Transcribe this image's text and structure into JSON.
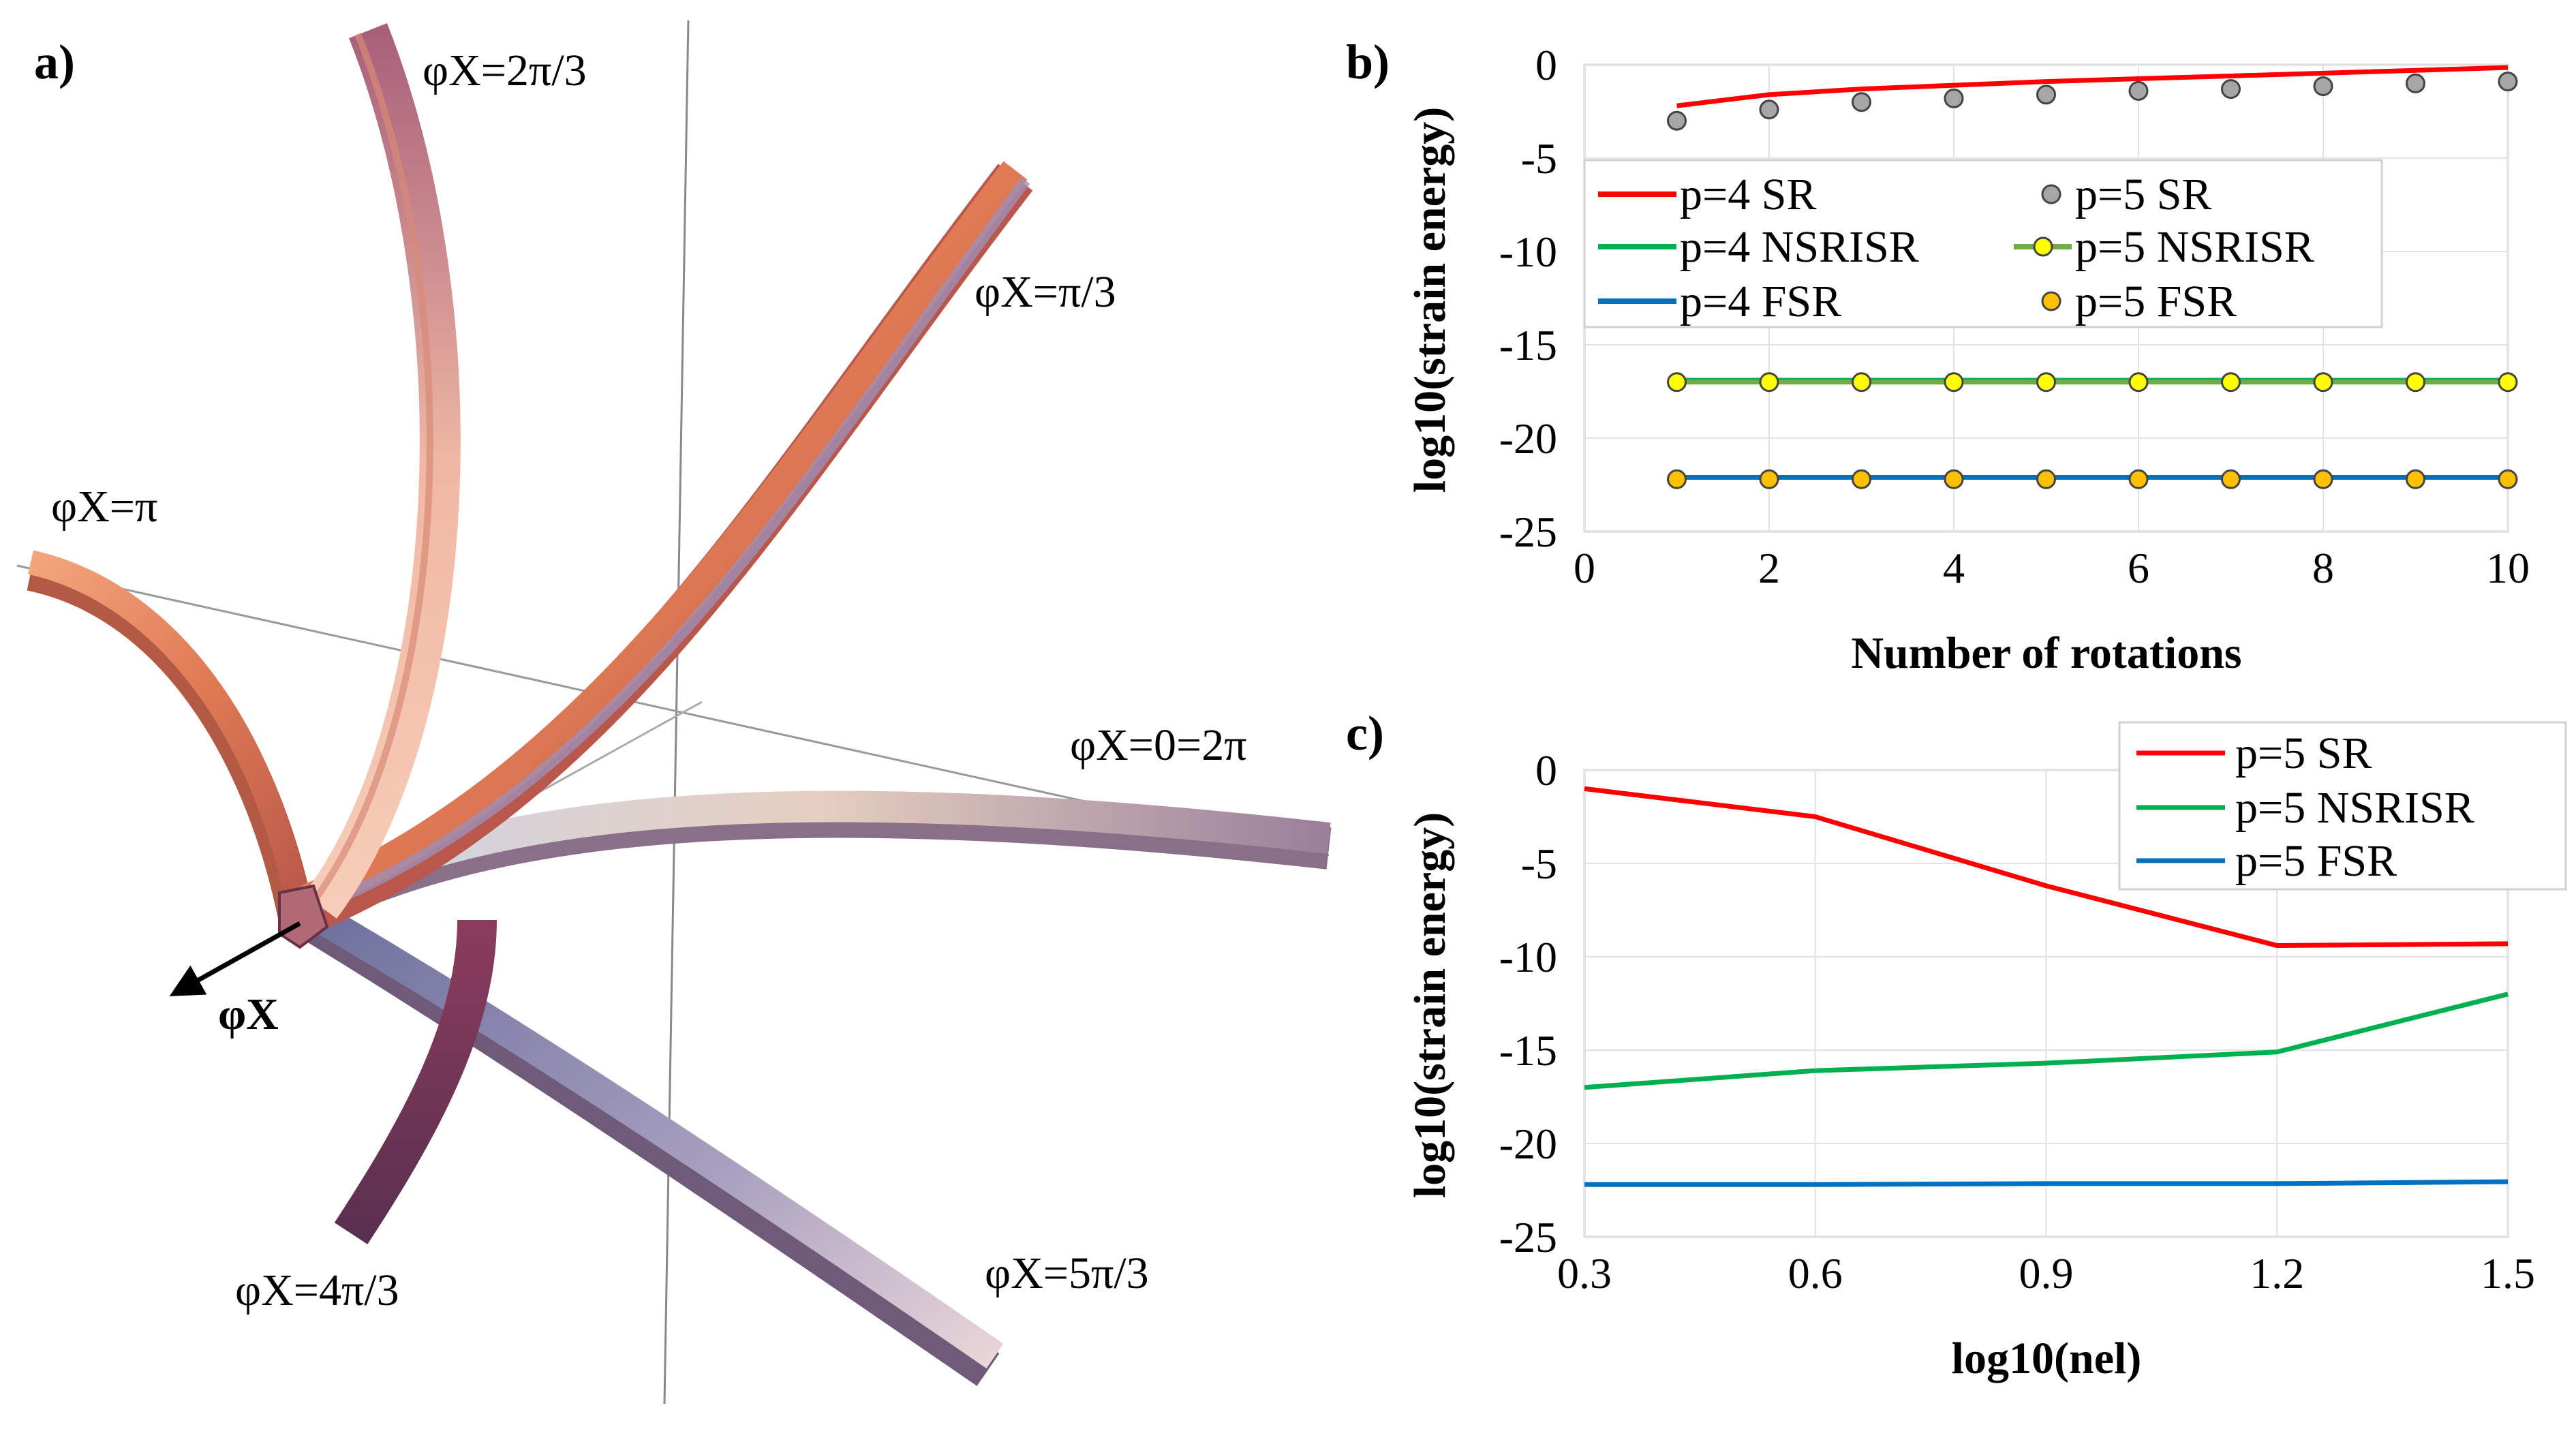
{
  "figure": {
    "panels": [
      "a)",
      "b)",
      "c)"
    ]
  },
  "panel_a": {
    "axis_label": "φX",
    "angle_labels": [
      "φX=2π/3",
      "φX=π/3",
      "φX=π",
      "φX=0=2π",
      "φX=4π/3",
      "φX=5π/3"
    ],
    "colors": {
      "warm": "#e9855f",
      "cool": "#8e8fb7",
      "dark": "#7a3a56"
    }
  },
  "chart_data": [
    {
      "type": "line",
      "title": "",
      "xlabel": "Number of rotations",
      "ylabel": "log10(strain energy)",
      "xlim": [
        0,
        10
      ],
      "ylim": [
        -25,
        0
      ],
      "xticks": [
        0,
        2,
        4,
        6,
        8,
        10
      ],
      "yticks": [
        0,
        -5,
        -10,
        -15,
        -20,
        -25
      ],
      "x": [
        1,
        2,
        3,
        4,
        5,
        6,
        7,
        8,
        9,
        10
      ],
      "legend_position": "upper-left",
      "series": [
        {
          "name": "p=4 SR",
          "style": "line",
          "color": "#ff0000",
          "values": [
            -2.2,
            -1.6,
            -1.3,
            -1.1,
            -0.9,
            -0.75,
            -0.6,
            -0.45,
            -0.3,
            -0.15
          ]
        },
        {
          "name": "p=4 NSRISR",
          "style": "line",
          "color": "#00b050",
          "values": [
            -16.9,
            -16.9,
            -16.9,
            -16.9,
            -16.9,
            -16.9,
            -16.9,
            -16.9,
            -16.9,
            -16.9
          ]
        },
        {
          "name": "p=4 FSR",
          "style": "line",
          "color": "#0070c0",
          "values": [
            -22.1,
            -22.1,
            -22.1,
            -22.1,
            -22.1,
            -22.1,
            -22.1,
            -22.1,
            -22.1,
            -22.1
          ]
        },
        {
          "name": "p=5 SR",
          "style": "markers",
          "color": "#a6a6a6",
          "values": [
            -3.0,
            -2.4,
            -2.0,
            -1.8,
            -1.6,
            -1.4,
            -1.3,
            -1.15,
            -1.0,
            -0.9
          ]
        },
        {
          "name": "p=5 NSRISR",
          "style": "line-markers",
          "color": "#ffff00",
          "line_color": "#70ad47",
          "values": [
            -17.0,
            -17.0,
            -17.0,
            -17.0,
            -17.0,
            -17.0,
            -17.0,
            -17.0,
            -17.0,
            -17.0
          ]
        },
        {
          "name": "p=5 FSR",
          "style": "markers",
          "color": "#ffc000",
          "values": [
            -22.2,
            -22.2,
            -22.2,
            -22.2,
            -22.2,
            -22.2,
            -22.2,
            -22.2,
            -22.2,
            -22.2
          ]
        }
      ]
    },
    {
      "type": "line",
      "title": "",
      "xlabel": "log10(nel)",
      "ylabel": "log10(strain energy)",
      "xlim": [
        0.3,
        1.5
      ],
      "ylim": [
        -25,
        0
      ],
      "xticks": [
        0.3,
        0.6,
        0.9,
        1.2,
        1.5
      ],
      "xtick_labels": [
        "0.3",
        "0.6",
        "0.9",
        "1.2",
        "1.5"
      ],
      "yticks": [
        0,
        -5,
        -10,
        -15,
        -20,
        -25
      ],
      "x": [
        0.3,
        0.6,
        0.9,
        1.2,
        1.5
      ],
      "legend_position": "top-right",
      "series": [
        {
          "name": "p=5 SR",
          "color": "#ff0000",
          "values": [
            -1.0,
            -2.5,
            -6.2,
            -9.4,
            -9.3
          ]
        },
        {
          "name": "p=5 NSRISR",
          "color": "#00b050",
          "values": [
            -17.0,
            -16.1,
            -15.7,
            -15.1,
            -12.0
          ]
        },
        {
          "name": "p=5 FSR",
          "color": "#0070c0",
          "values": [
            -22.2,
            -22.2,
            -22.15,
            -22.15,
            -22.05
          ]
        }
      ]
    }
  ]
}
